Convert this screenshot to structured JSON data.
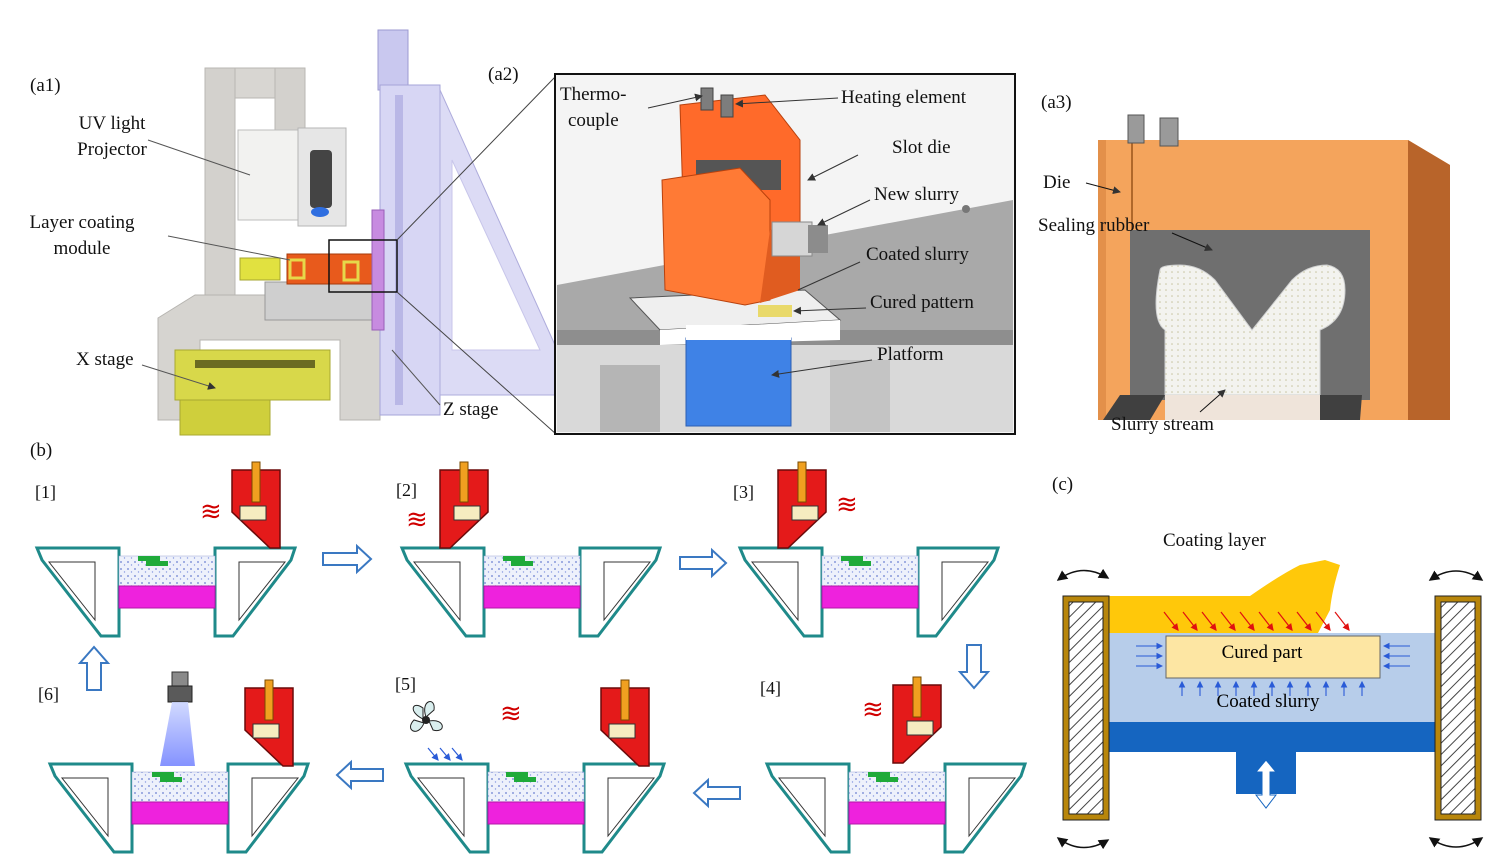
{
  "panels": {
    "a1": {
      "tag": "(a1)",
      "labels": {
        "uv_line1": "UV light",
        "uv_line2": "Projector",
        "coat_line1": "Layer coating",
        "coat_line2": "module",
        "x_stage": "X stage",
        "z_stage": "Z stage"
      }
    },
    "a2": {
      "tag": "(a2)",
      "labels": {
        "thermo_line1": "Thermo-",
        "thermo_line2": "couple",
        "heating": "Heating element",
        "slot_die": "Slot die",
        "new_slurry": "New slurry",
        "coated_slurry": "Coated slurry",
        "cured_pattern": "Cured pattern",
        "platform": "Platform"
      }
    },
    "a3": {
      "tag": "(a3)",
      "labels": {
        "die": "Die",
        "sealing_rubber": "Sealing rubber",
        "slurry_stream": "Slurry stream"
      }
    },
    "b": {
      "tag": "(b)",
      "steps": [
        "[1]",
        "[2]",
        "[3]",
        "[4]",
        "[5]",
        "[6]"
      ],
      "heat_glyph": "≋"
    },
    "c": {
      "tag": "(c)",
      "labels": {
        "coating_layer": "Coating layer",
        "cured_part": "Cured part",
        "coated_slurry": "Coated slurry"
      }
    }
  },
  "colors": {
    "orange_die": "#ff6a2a",
    "die_peach": "#f4a45c",
    "rubber_gray": "#6f6f6f",
    "platform_blue": "#3f82e6",
    "vat_teal": "#1f8a8a",
    "slurry_dots": "#d8e0f8",
    "magenta_platform": "#ee22dd",
    "cured_green": "#1faa3a",
    "red_die": "#e41a1a",
    "heat_red": "#d00000",
    "arrow_blue": "#3a78c2",
    "coating_yellow": "#ffc80a",
    "coated_slurry_blue": "#b7cdea",
    "cured_part_fill": "#fde6a3",
    "platform_dark_blue": "#1565c0",
    "frame_brown": "#b8860b"
  }
}
